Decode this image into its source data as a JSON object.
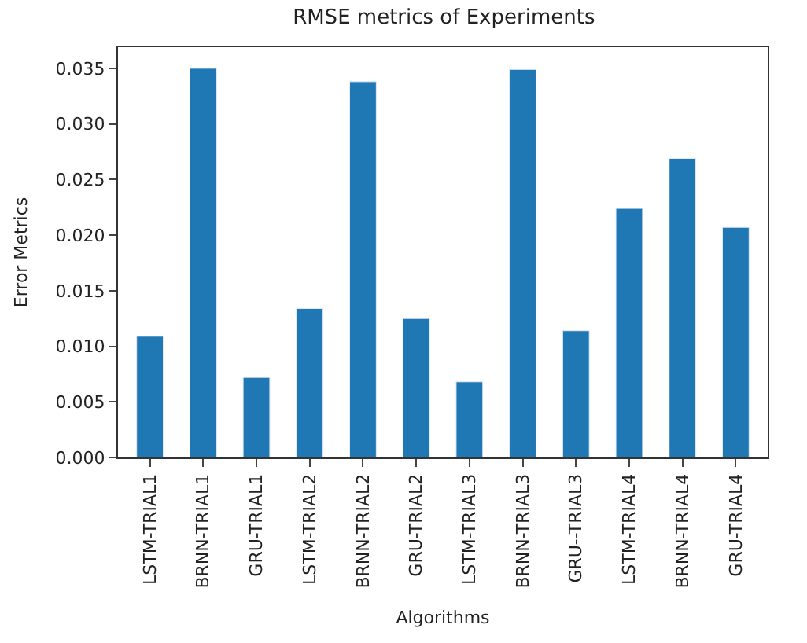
{
  "chart_data": {
    "type": "bar",
    "title": "RMSE metrics of Experiments",
    "xlabel": "Algorithms",
    "ylabel": "Error Metrics",
    "categories": [
      "LSTM-TRIAL1",
      "BRNN-TRIAL1",
      "GRU-TRIAL1",
      "LSTM-TRIAL2",
      "BRNN-TRIAL2",
      "GRU-TRIAL2",
      "LSTM-TRIAL3",
      "BRNN-TRIAL3",
      "GRU--TRIAL3",
      "LSTM-TRIAL4",
      "BRNN-TRIAL4",
      "GRU-TRIAL4"
    ],
    "values": [
      0.0109,
      0.035,
      0.0072,
      0.0134,
      0.0338,
      0.0125,
      0.0068,
      0.0349,
      0.0114,
      0.0224,
      0.0269,
      0.0207
    ],
    "color": "#1f77b4",
    "ylim": [
      0,
      0.0369
    ],
    "yticks": [
      {
        "value": 0,
        "label": "0.000"
      },
      {
        "value": 0.005,
        "label": "0.005"
      },
      {
        "value": 0.01,
        "label": "0.010"
      },
      {
        "value": 0.015,
        "label": "0.015"
      },
      {
        "value": 0.02,
        "label": "0.020"
      },
      {
        "value": 0.025,
        "label": "0.025"
      },
      {
        "value": 0.03,
        "label": "0.030"
      },
      {
        "value": 0.035,
        "label": "0.035"
      }
    ],
    "legend": false
  }
}
